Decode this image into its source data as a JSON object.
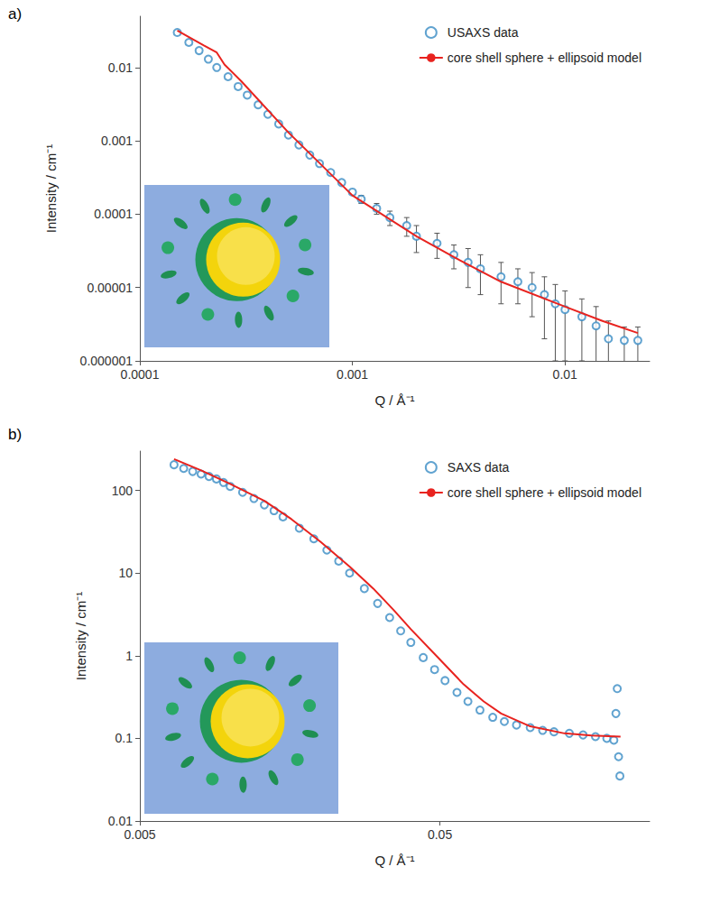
{
  "chart_data": [
    {
      "type": "scatter",
      "title": "a)",
      "x_label": "Q / Å⁻¹",
      "y_label": "Intensity / cm⁻¹",
      "log": true,
      "grid": false,
      "legend": "top-right",
      "xlim": [
        0.0001,
        0.025
      ],
      "xticks": [
        0.0001,
        0.001,
        0.01
      ],
      "ylim": [
        1e-06,
        0.05
      ],
      "yticks": [
        1e-06,
        1e-05,
        0.0001,
        0.001,
        0.01
      ],
      "series": [
        {
          "name": "USAXS data",
          "type": "scatter",
          "marker": "open circle",
          "color": "#3a8cc4",
          "x": [
            0.00015,
            0.00017,
            0.00019,
            0.00021,
            0.00023,
            0.00026,
            0.00029,
            0.00032,
            0.00036,
            0.0004,
            0.00045,
            0.0005,
            0.00056,
            0.00063,
            0.0007,
            0.00079,
            0.00089,
            0.001,
            0.0011,
            0.0013,
            0.0015,
            0.0018,
            0.002,
            0.0025,
            0.003,
            0.0035,
            0.004,
            0.005,
            0.006,
            0.007,
            0.008,
            0.009,
            0.01,
            0.012,
            0.014,
            0.016,
            0.019,
            0.022
          ],
          "values": [
            0.03,
            0.022,
            0.017,
            0.013,
            0.01,
            0.0075,
            0.0055,
            0.0042,
            0.0031,
            0.0023,
            0.0017,
            0.0012,
            0.00088,
            0.00064,
            0.00049,
            0.00037,
            0.00027,
            0.0002,
            0.00016,
            0.00012,
            9e-05,
            7e-05,
            5e-05,
            4e-05,
            2.8e-05,
            2.2e-05,
            1.8e-05,
            1.4e-05,
            1.2e-05,
            1e-05,
            8e-06,
            6e-06,
            5e-06,
            4e-06,
            3e-06,
            2e-06,
            1.9e-06,
            1.9e-06
          ],
          "errors": [
            null,
            null,
            null,
            null,
            null,
            null,
            null,
            null,
            null,
            null,
            null,
            null,
            null,
            null,
            null,
            null,
            null,
            null,
            2e-05,
            2e-05,
            2e-05,
            2e-05,
            2e-05,
            1.5e-05,
            1e-05,
            1.2e-05,
            1e-05,
            8e-06,
            6e-06,
            6e-06,
            6e-06,
            5e-06,
            4e-06,
            3e-06,
            2.5e-06,
            1.5e-06,
            1e-06,
            1e-06
          ]
        },
        {
          "name": "core shell sphere + ellipsoid model",
          "type": "line",
          "line_style": "solid",
          "color": "#e8231f",
          "x": [
            0.00015,
            0.0002,
            0.00023,
            0.00025,
            0.0003,
            0.0005,
            0.001,
            0.002,
            0.003,
            0.005,
            0.01,
            0.015,
            0.022
          ],
          "values": [
            0.032,
            0.02,
            0.016,
            0.011,
            0.0065,
            0.0013,
            0.00018,
            5e-05,
            2.6e-05,
            1.2e-05,
            5.5e-06,
            3.5e-06,
            2.4e-06
          ]
        }
      ]
    },
    {
      "type": "scatter",
      "title": "b)",
      "x_label": "Q / Å⁻¹",
      "y_label": "Intensity / cm⁻¹",
      "log": true,
      "grid": false,
      "legend": "top-right",
      "xlim": [
        0.005,
        0.25
      ],
      "xticks": [
        0.005,
        0.05
      ],
      "ylim": [
        0.01,
        300
      ],
      "yticks": [
        0.01,
        0.1,
        1,
        10,
        100
      ],
      "series": [
        {
          "name": "SAXS data",
          "type": "scatter",
          "marker": "open circle",
          "color": "#3a8cc4",
          "x": [
            0.0065,
            0.007,
            0.0075,
            0.008,
            0.0085,
            0.009,
            0.0095,
            0.01,
            0.011,
            0.012,
            0.013,
            0.014,
            0.015,
            0.017,
            0.019,
            0.021,
            0.023,
            0.025,
            0.028,
            0.031,
            0.034,
            0.037,
            0.04,
            0.044,
            0.048,
            0.052,
            0.057,
            0.062,
            0.068,
            0.075,
            0.082,
            0.09,
            0.1,
            0.11,
            0.12,
            0.135,
            0.15,
            0.165,
            0.18,
            0.19,
            0.193,
            0.195,
            0.197,
            0.199
          ],
          "values": [
            205,
            185,
            170,
            158,
            148,
            138,
            125,
            112,
            95,
            80,
            67,
            57,
            48,
            35,
            26,
            19,
            14,
            10,
            6.5,
            4.3,
            2.9,
            2,
            1.45,
            0.95,
            0.68,
            0.5,
            0.36,
            0.28,
            0.22,
            0.18,
            0.16,
            0.145,
            0.135,
            0.125,
            0.12,
            0.115,
            0.11,
            0.105,
            0.1,
            0.095,
            0.2,
            0.4,
            0.06,
            0.035
          ]
        },
        {
          "name": "core shell sphere + ellipsoid model",
          "type": "line",
          "line_style": "solid",
          "color": "#e8231f",
          "x": [
            0.0065,
            0.008,
            0.01,
            0.013,
            0.016,
            0.02,
            0.025,
            0.03,
            0.035,
            0.04,
            0.05,
            0.06,
            0.07,
            0.08,
            0.1,
            0.13,
            0.16,
            0.2
          ],
          "values": [
            240,
            175,
            120,
            75,
            45,
            24,
            12,
            6.5,
            3.6,
            2.1,
            0.9,
            0.45,
            0.28,
            0.2,
            0.14,
            0.115,
            0.108,
            0.105
          ]
        }
      ]
    }
  ]
}
